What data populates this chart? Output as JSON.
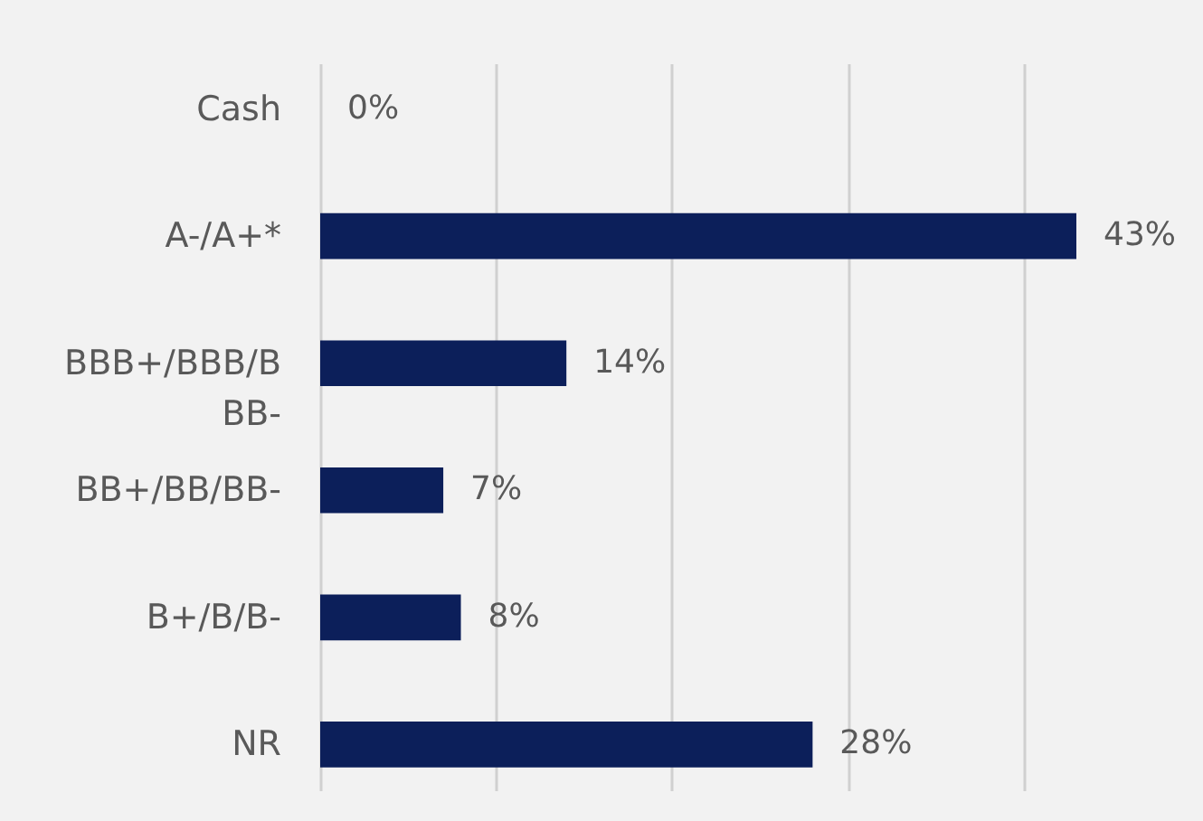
{
  "chart_data": {
    "type": "bar",
    "orientation": "horizontal",
    "categories": [
      "Cash",
      "A-/A+*",
      "BBB+/BBB/BBB-",
      "BB+/BB/BB-",
      "B+/B/B-",
      "NR"
    ],
    "values": [
      0,
      43,
      14,
      7,
      8,
      28
    ],
    "value_labels": [
      "0%",
      "43%",
      "14%",
      "7%",
      "8%",
      "28%"
    ],
    "color": "#0c1f5a",
    "grid": "x",
    "tick_labels": "y"
  }
}
